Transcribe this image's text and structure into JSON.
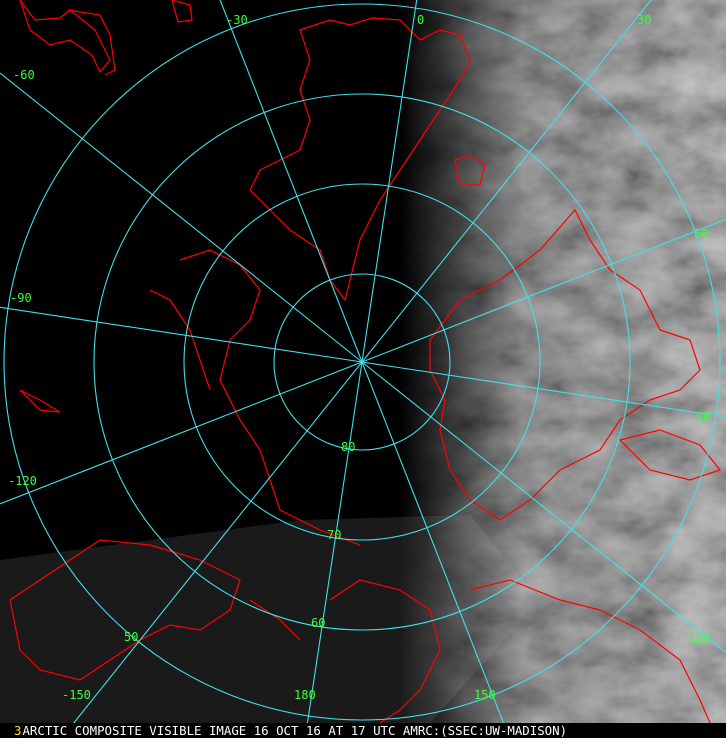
{
  "caption": {
    "frame_number": "3",
    "text": "ARCTIC COMPOSITE VISIBLE IMAGE 16 OCT 16 AT 17 UTC AMRC:(SSEC:UW-MADISON)"
  },
  "map": {
    "projection": "polar stereographic, north pole",
    "meridian_labels": [
      "0",
      "30",
      "60",
      "90",
      "120",
      "150",
      "180",
      "-150",
      "-120",
      "-90",
      "-60",
      "-30"
    ],
    "parallel_labels": [
      "80",
      "70",
      "60",
      "50"
    ],
    "colors": {
      "graticule": "#40e0e8",
      "coastline": "#ff0000",
      "labels": "#3cff3c",
      "frame_number": "#ffe000",
      "caption": "#ffffff"
    }
  }
}
